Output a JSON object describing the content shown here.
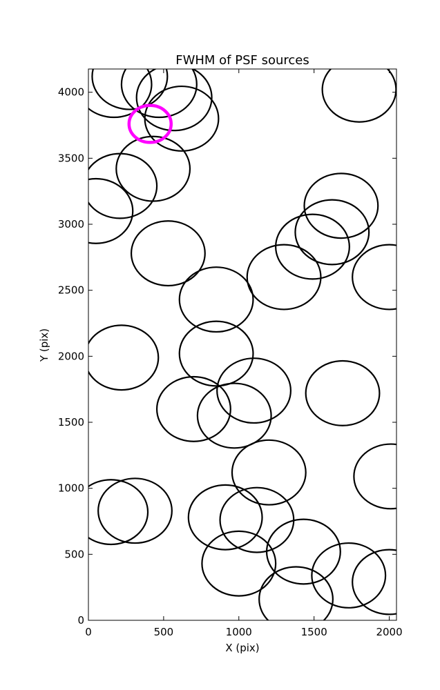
{
  "chart_data": {
    "type": "scatter",
    "title": "FWHM of PSF sources",
    "xlabel": "X (pix)",
    "ylabel": "Y (pix)",
    "xlim": [
      0,
      2048
    ],
    "ylim": [
      0,
      4176
    ],
    "xticks": [
      0,
      500,
      1000,
      1500,
      2000
    ],
    "yticks": [
      0,
      500,
      1000,
      1500,
      2000,
      2500,
      3000,
      3500,
      4000
    ],
    "grid": false,
    "legend": "none",
    "marker": "open circle",
    "series": [
      {
        "color": "#000000",
        "points": [
          {
            "x": 170,
            "y": 4060,
            "r": 250
          },
          {
            "x": 275,
            "y": 4120,
            "r": 250
          },
          {
            "x": 470,
            "y": 4060,
            "r": 250
          },
          {
            "x": 570,
            "y": 3960,
            "r": 250
          },
          {
            "x": 620,
            "y": 3800,
            "r": 245
          },
          {
            "x": 1800,
            "y": 4020,
            "r": 245
          },
          {
            "x": 430,
            "y": 3420,
            "r": 245
          },
          {
            "x": 210,
            "y": 3290,
            "r": 245
          },
          {
            "x": 50,
            "y": 3100,
            "r": 245
          },
          {
            "x": 1680,
            "y": 3140,
            "r": 245
          },
          {
            "x": 1620,
            "y": 2940,
            "r": 245
          },
          {
            "x": 1490,
            "y": 2830,
            "r": 245
          },
          {
            "x": 530,
            "y": 2780,
            "r": 245
          },
          {
            "x": 1300,
            "y": 2600,
            "r": 245
          },
          {
            "x": 2000,
            "y": 2600,
            "r": 245
          },
          {
            "x": 850,
            "y": 2430,
            "r": 245
          },
          {
            "x": 220,
            "y": 1990,
            "r": 245
          },
          {
            "x": 850,
            "y": 2020,
            "r": 245
          },
          {
            "x": 1100,
            "y": 1740,
            "r": 245
          },
          {
            "x": 1690,
            "y": 1720,
            "r": 245
          },
          {
            "x": 700,
            "y": 1600,
            "r": 245
          },
          {
            "x": 970,
            "y": 1550,
            "r": 245
          },
          {
            "x": 1200,
            "y": 1120,
            "r": 245
          },
          {
            "x": 2010,
            "y": 1090,
            "r": 245
          },
          {
            "x": 150,
            "y": 820,
            "r": 245
          },
          {
            "x": 310,
            "y": 830,
            "r": 245
          },
          {
            "x": 910,
            "y": 780,
            "r": 245
          },
          {
            "x": 1120,
            "y": 760,
            "r": 245
          },
          {
            "x": 1430,
            "y": 520,
            "r": 245
          },
          {
            "x": 1000,
            "y": 430,
            "r": 245
          },
          {
            "x": 1730,
            "y": 340,
            "r": 245
          },
          {
            "x": 2000,
            "y": 290,
            "r": 245
          },
          {
            "x": 1380,
            "y": 160,
            "r": 245
          }
        ]
      },
      {
        "color": "#ff00ff",
        "points": [
          {
            "x": 410,
            "y": 3760,
            "r": 140
          }
        ]
      }
    ]
  }
}
